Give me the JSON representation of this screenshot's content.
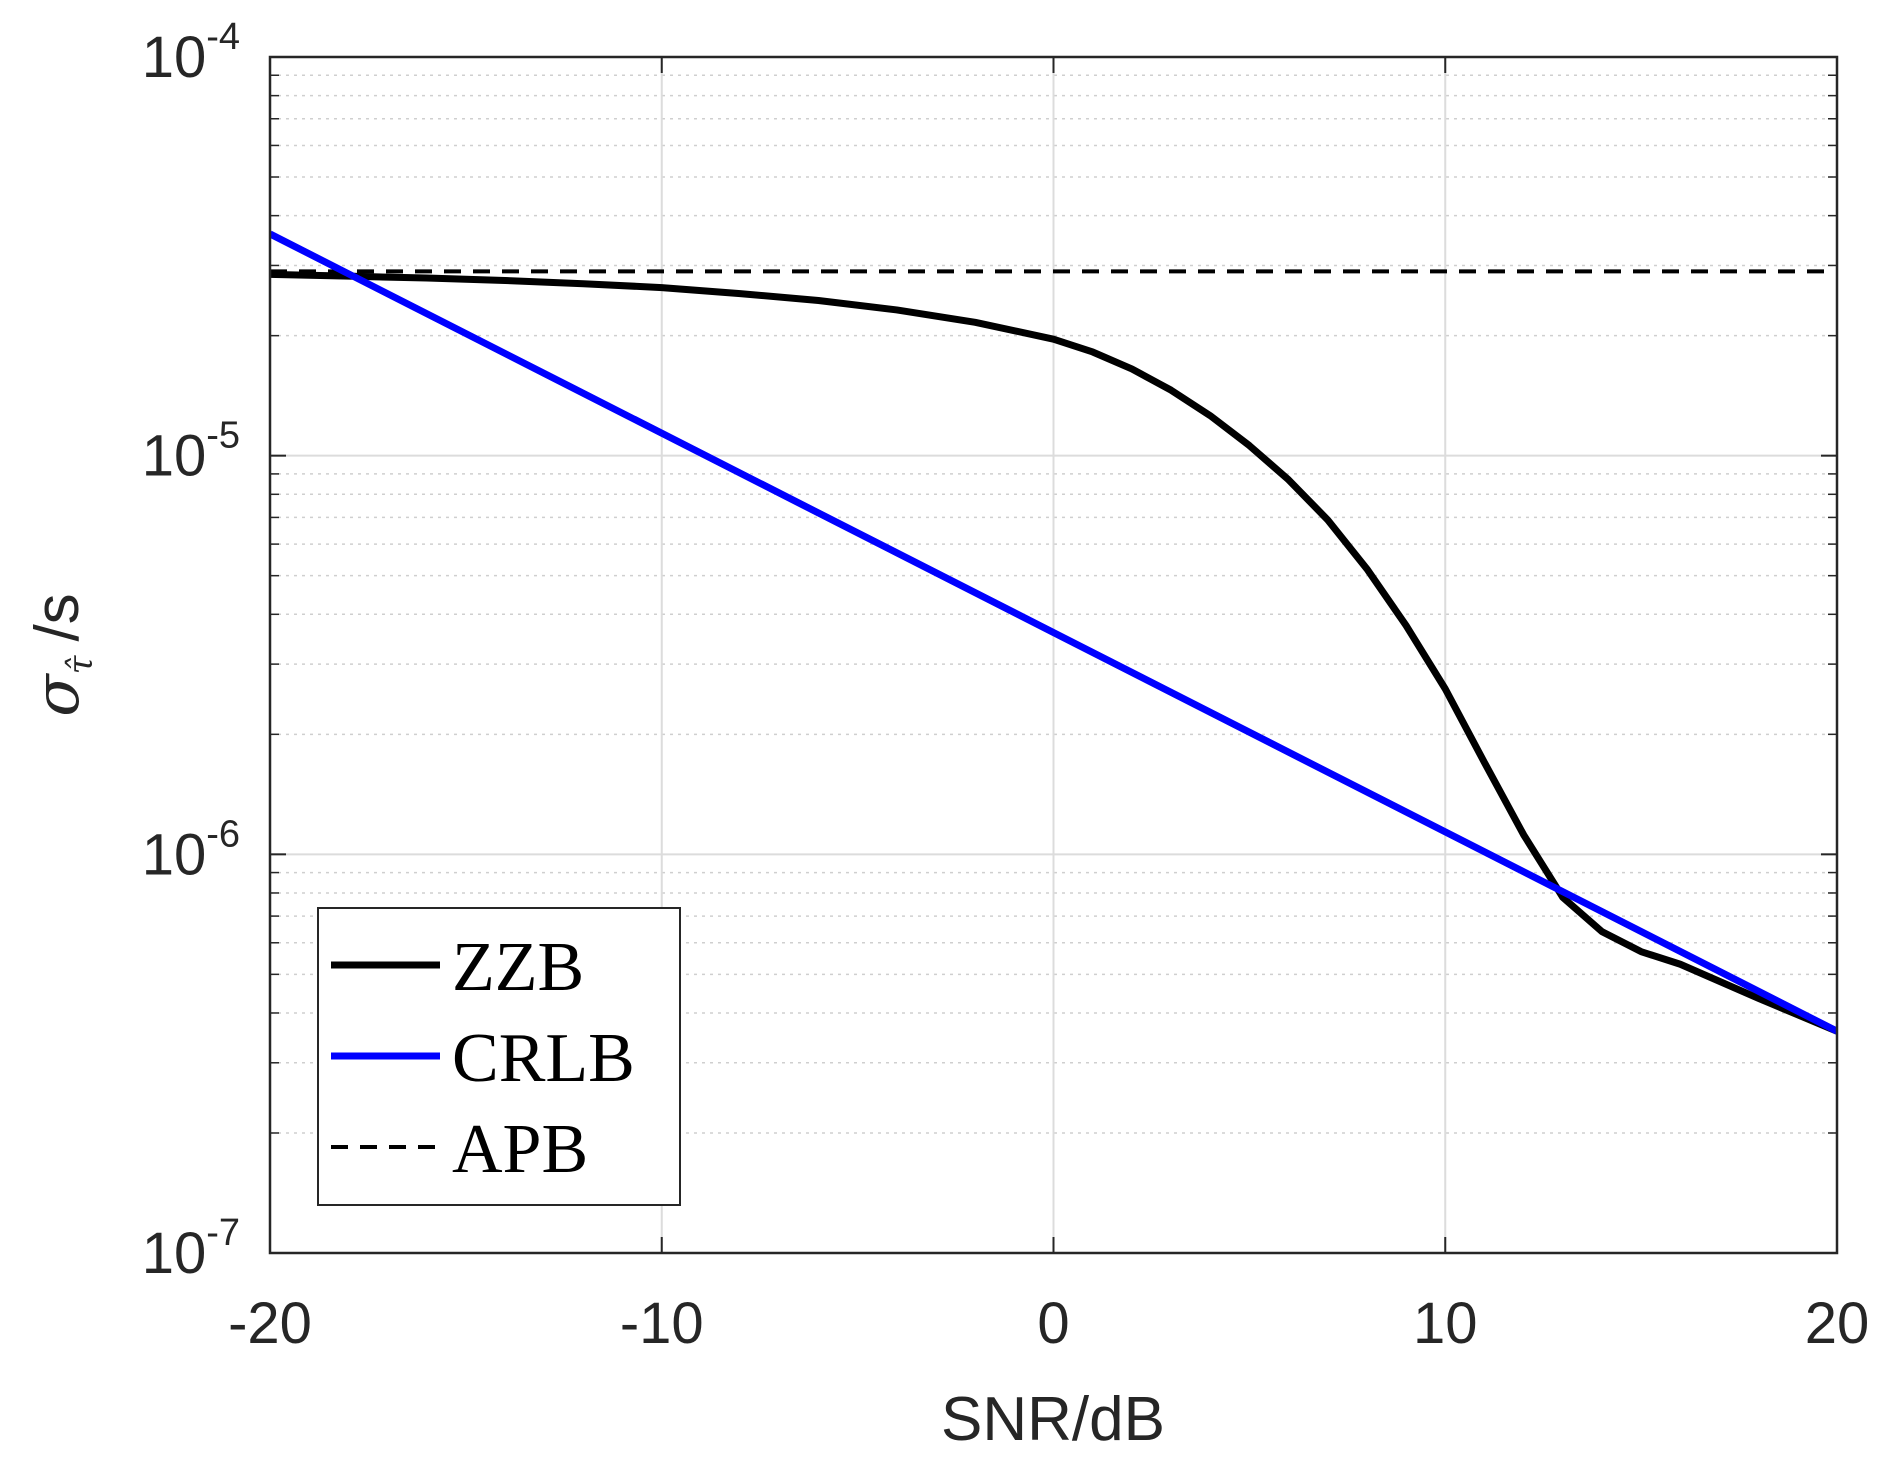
{
  "chart_data": {
    "type": "line",
    "title": "",
    "xlabel": "SNR/dB",
    "ylabel": {
      "symbol": "σ",
      "subscript": "τ̂",
      "unit": "/s"
    },
    "x_scale": "linear",
    "y_scale": "log",
    "xlim": [
      -20,
      20
    ],
    "ylim": [
      1e-07,
      0.0001
    ],
    "x_ticks": [
      -20,
      -10,
      0,
      10,
      20
    ],
    "x_tick_labels": [
      "-20",
      "-10",
      "0",
      "10",
      "20"
    ],
    "y_ticks": [
      {
        "value": 1e-07,
        "base": "10",
        "exp": "-7"
      },
      {
        "value": 1e-06,
        "base": "10",
        "exp": "-6"
      },
      {
        "value": 1e-05,
        "base": "10",
        "exp": "-5"
      },
      {
        "value": 0.0001,
        "base": "10",
        "exp": "-4"
      }
    ],
    "grid": true,
    "minor_grid": true,
    "legend_position": "bottom-left",
    "series": [
      {
        "name": "ZZB",
        "color": "#000000",
        "style": "solid",
        "x": [
          -20,
          -18,
          -16,
          -14,
          -12,
          -10,
          -8,
          -6,
          -4,
          -2,
          0,
          1,
          2,
          3,
          4,
          5,
          6,
          7,
          8,
          9,
          10,
          11,
          12,
          13,
          14,
          15,
          16,
          18,
          20
        ],
        "y": [
          2.85e-05,
          2.82e-05,
          2.79e-05,
          2.75e-05,
          2.7e-05,
          2.64e-05,
          2.55e-05,
          2.45e-05,
          2.32e-05,
          2.16e-05,
          1.96e-05,
          1.82e-05,
          1.65e-05,
          1.46e-05,
          1.26e-05,
          1.06e-05,
          8.7e-06,
          6.9e-06,
          5.2e-06,
          3.75e-06,
          2.6e-06,
          1.7e-06,
          1.12e-06,
          7.8e-07,
          6.4e-07,
          5.7e-07,
          5.3e-07,
          4.35e-07,
          3.6e-07
        ]
      },
      {
        "name": "CRLB",
        "color": "#0000ff",
        "style": "solid",
        "x": [
          -20,
          20
        ],
        "y": [
          3.6e-05,
          3.6e-07
        ]
      },
      {
        "name": "APB",
        "color": "#000000",
        "style": "dashed",
        "x": [
          -20,
          20
        ],
        "y": [
          2.9e-05,
          2.9e-05
        ]
      }
    ]
  }
}
